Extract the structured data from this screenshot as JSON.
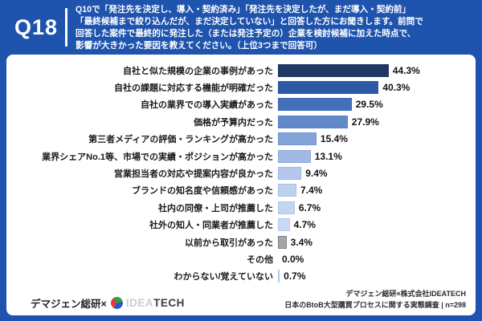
{
  "header": {
    "question_number": "Q18",
    "question_text": "Q10で「発注先を決定し、導入・契約済み」「発注先を決定したが、まだ導入・契約前」\n「最終候補まで絞り込んだが、まだ決定していない」と回答した方にお聞きします。前問で\n回答した案件で最終的に発注した（または発注予定の）企業を検討候補に加えた時点で、\n影響が大きかった要因を教えてください。（上位3つまで回答可）"
  },
  "chart_data": {
    "type": "bar",
    "orientation": "horizontal",
    "unit": "%",
    "xlim": [
      0,
      50
    ],
    "grid": false,
    "legend": "none",
    "categories": [
      "自社と似た規模の企業の事例があった",
      "自社の課題に対応する機能が明確だった",
      "自社の業界での導入実績があった",
      "価格が予算内だった",
      "第三者メディアの評価・ランキングが高かった",
      "業界シェアNo.1等、市場での実績・ポジションが高かった",
      "営業担当者の対応や提案内容が良かった",
      "ブランドの知名度や信頼感があった",
      "社内の同僚・上司が推薦した",
      "社外の知人・同業者が推薦した",
      "以前から取引があった",
      "その他",
      "わからない/覚えていない"
    ],
    "values": [
      44.3,
      40.3,
      29.5,
      27.9,
      15.4,
      13.1,
      9.4,
      7.4,
      6.7,
      4.7,
      3.4,
      0.0,
      0.7
    ],
    "value_labels": [
      "44.3%",
      "40.3%",
      "29.5%",
      "27.9%",
      "15.4%",
      "13.1%",
      "9.4%",
      "7.4%",
      "6.7%",
      "4.7%",
      "3.4%",
      "0.0%",
      "0.7%"
    ],
    "bar_colors": [
      "#203864",
      "#2E59A6",
      "#4470BB",
      "#6489CA",
      "#83A3D8",
      "#A0BAE5",
      "#B3C8EC",
      "#BDD0EE",
      "#C3D5F0",
      "#CBDAF2",
      "#A6A6A6",
      "none",
      "#D6E2F5"
    ],
    "bar_borders": [
      "#203864",
      "#2E59A6",
      "#3E68B2",
      "#5A80C2",
      "#7497D0",
      "#8FACDC",
      "#9FB9E4",
      "#A7C0E8",
      "#ADC5EA",
      "#B4CBEE",
      "#7F7F7F",
      "none",
      "#AFC8EE"
    ]
  },
  "footer": {
    "brand_prefix": "デマジェン総研×",
    "brand_idea": "IDEA",
    "brand_tech": "TECH",
    "source_line1": "デマジェン総研×株式会社IDEATECH",
    "source_line2": "日本のBtoB大型購買プロセスに関する実態調査 | n=298"
  },
  "colors": {
    "background": "#1E53AE",
    "panel": "#FFFFFF",
    "header_text": "#FFFFFF"
  }
}
